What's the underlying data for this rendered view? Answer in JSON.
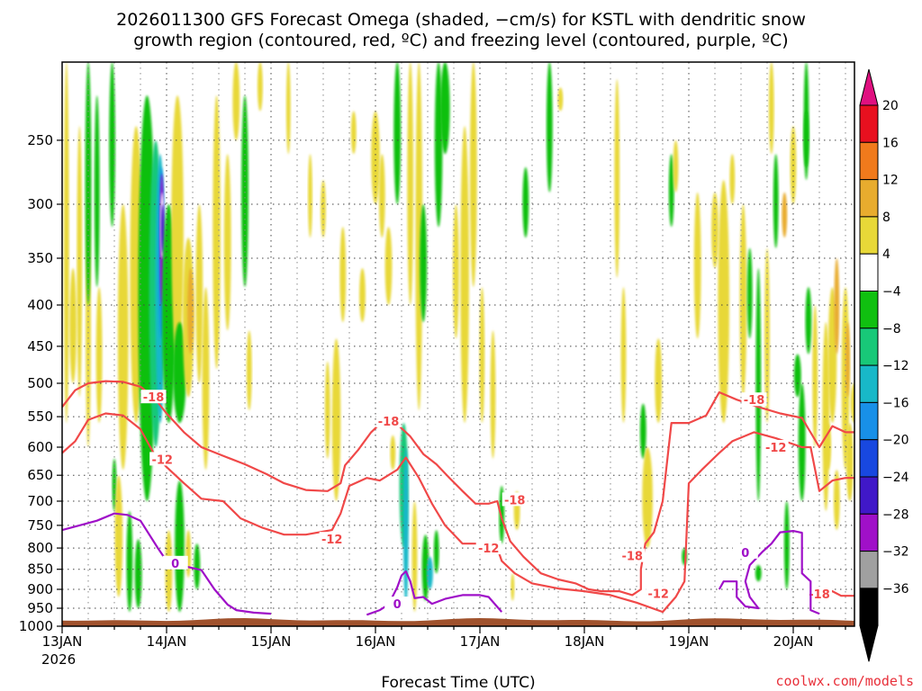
{
  "chart_data": {
    "type": "heatmap",
    "title_line1": "2026011300 GFS Forecast Omega (shaded, −cm/s) for KSTL with dendritic snow",
    "title_line2": "growth region (contoured, red, ºC) and freezing level (contoured, purple, ºC)",
    "xlabel": "Forecast Time (UTC)",
    "credit": "coolwx.com/models",
    "x_ticks": [
      {
        "t": 0,
        "label": "13JAN"
      },
      {
        "t": 24,
        "label": "14JAN"
      },
      {
        "t": 48,
        "label": "15JAN"
      },
      {
        "t": 72,
        "label": "16JAN"
      },
      {
        "t": 96,
        "label": "17JAN"
      },
      {
        "t": 120,
        "label": "18JAN"
      },
      {
        "t": 144,
        "label": "19JAN"
      },
      {
        "t": 168,
        "label": "20JAN"
      }
    ],
    "x_year_label": "2026",
    "xlim_hours": [
      0,
      183
    ],
    "y_ticks": [
      250,
      300,
      350,
      400,
      450,
      500,
      550,
      600,
      650,
      700,
      750,
      800,
      850,
      900,
      950,
      1000
    ],
    "ylim_hpa": [
      200,
      1000
    ],
    "y_scale": "log-pressure",
    "grid": true,
    "colorbar": {
      "levels": [
        "20",
        "16",
        "12",
        "8",
        "4",
        "−4",
        "−8",
        "−12",
        "−16",
        "−20",
        "−24",
        "−28",
        "−32",
        "−36"
      ],
      "colors": [
        "#e8101f",
        "#f07a1c",
        "#e8ac2e",
        "#e8d838",
        "#ffffff",
        "#10c010",
        "#18c878",
        "#18b8c8",
        "#1890e8",
        "#1848e0",
        "#4018c8",
        "#a010c8",
        "#a0a0a0",
        "#000000"
      ],
      "top_arrow_color": "#e01080",
      "bottom_arrow_color": "#000000"
    },
    "terrain_color": "#a0522d",
    "contours": [
      {
        "label": "-18",
        "color": "#f04848",
        "points": [
          [
            0,
            535
          ],
          [
            3,
            510
          ],
          [
            6,
            500
          ],
          [
            10,
            497
          ],
          [
            14,
            498
          ],
          [
            18,
            505
          ],
          [
            21,
            520
          ],
          [
            24,
            545
          ],
          [
            28,
            575
          ],
          [
            32,
            600
          ],
          [
            37,
            615
          ],
          [
            42,
            630
          ],
          [
            47,
            648
          ],
          [
            51,
            665
          ],
          [
            56,
            678
          ],
          [
            61,
            680
          ],
          [
            64,
            665
          ],
          [
            65,
            632
          ],
          [
            68,
            605
          ],
          [
            71,
            575
          ],
          [
            74,
            555
          ],
          [
            77,
            562
          ],
          [
            80,
            582
          ],
          [
            83,
            612
          ],
          [
            86,
            630
          ],
          [
            89,
            655
          ],
          [
            92,
            680
          ],
          [
            95,
            705
          ],
          [
            98,
            705
          ],
          [
            100,
            700
          ],
          [
            101,
            735
          ],
          [
            103,
            785
          ],
          [
            106,
            820
          ],
          [
            110,
            860
          ],
          [
            114,
            875
          ],
          [
            118,
            885
          ],
          [
            121,
            900
          ],
          [
            124,
            905
          ],
          [
            128,
            905
          ],
          [
            131,
            915
          ],
          [
            133,
            900
          ],
          [
            133,
            850
          ],
          [
            134,
            790
          ],
          [
            136,
            765
          ],
          [
            138,
            700
          ],
          [
            140,
            560
          ],
          [
            144,
            560
          ],
          [
            148,
            548
          ],
          [
            151,
            513
          ],
          [
            155,
            524
          ],
          [
            160,
            535
          ],
          [
            165,
            545
          ],
          [
            170,
            552
          ],
          [
            174,
            600
          ],
          [
            177,
            565
          ],
          [
            180,
            575
          ],
          [
            183,
            575
          ]
        ],
        "labels": [
          {
            "t": 21,
            "p": 520
          },
          {
            "t": 75,
            "p": 557
          },
          {
            "t": 104,
            "p": 697
          },
          {
            "t": 131,
            "p": 818
          },
          {
            "t": 159,
            "p": 524
          }
        ]
      },
      {
        "label": "-12",
        "color": "#f04848",
        "points": [
          [
            0,
            610
          ],
          [
            3,
            590
          ],
          [
            6,
            555
          ],
          [
            10,
            545
          ],
          [
            14,
            548
          ],
          [
            18,
            570
          ],
          [
            21,
            610
          ],
          [
            24,
            635
          ],
          [
            28,
            665
          ],
          [
            32,
            695
          ],
          [
            37,
            700
          ],
          [
            41,
            735
          ],
          [
            46,
            755
          ],
          [
            51,
            770
          ],
          [
            56,
            770
          ],
          [
            62,
            760
          ],
          [
            64,
            725
          ],
          [
            66,
            670
          ],
          [
            70,
            655
          ],
          [
            73,
            660
          ],
          [
            77,
            640
          ],
          [
            79,
            618
          ],
          [
            82,
            655
          ],
          [
            85,
            705
          ],
          [
            88,
            750
          ],
          [
            92,
            790
          ],
          [
            96,
            790
          ],
          [
            100,
            800
          ],
          [
            101,
            830
          ],
          [
            104,
            860
          ],
          [
            108,
            885
          ],
          [
            114,
            898
          ],
          [
            120,
            905
          ],
          [
            126,
            915
          ],
          [
            132,
            935
          ],
          [
            138,
            960
          ],
          [
            141,
            920
          ],
          [
            143,
            880
          ],
          [
            144,
            665
          ],
          [
            147,
            640
          ],
          [
            151,
            610
          ],
          [
            154,
            590
          ],
          [
            159,
            575
          ],
          [
            164,
            585
          ],
          [
            170,
            600
          ],
          [
            172,
            600
          ],
          [
            174,
            680
          ],
          [
            177,
            660
          ],
          [
            180,
            655
          ],
          [
            183,
            655
          ]
        ],
        "labels": [
          {
            "t": 23,
            "p": 621
          },
          {
            "t": 62,
            "p": 780
          },
          {
            "t": 98,
            "p": 800
          },
          {
            "t": 137,
            "p": 910
          },
          {
            "t": 164,
            "p": 600
          }
        ]
      },
      {
        "label": "-18",
        "color": "#f04848",
        "points": [
          [
            175,
            912
          ],
          [
            177,
            905
          ],
          [
            179,
            917
          ],
          [
            183,
            917
          ]
        ],
        "labels": [
          {
            "t": 174,
            "p": 912
          }
        ]
      },
      {
        "label": "0",
        "color": "#9f10c8",
        "points": [
          [
            0,
            760
          ],
          [
            4,
            750
          ],
          [
            8,
            740
          ],
          [
            12,
            725
          ],
          [
            15,
            728
          ],
          [
            18,
            740
          ],
          [
            22,
            800
          ],
          [
            24,
            830
          ],
          [
            27,
            840
          ],
          [
            32,
            852
          ],
          [
            35,
            900
          ],
          [
            38,
            940
          ],
          [
            40,
            955
          ],
          [
            44,
            962
          ],
          [
            48,
            965
          ]
        ],
        "labels": [
          {
            "t": 26,
            "p": 835
          }
        ]
      },
      {
        "label": "0",
        "color": "#9f10c8",
        "points": [
          [
            70,
            968
          ],
          [
            73,
            955
          ],
          [
            75,
            940
          ],
          [
            77,
            895
          ],
          [
            78,
            865
          ],
          [
            79,
            855
          ],
          [
            80,
            880
          ],
          [
            81,
            923
          ],
          [
            83,
            920
          ],
          [
            85,
            938
          ],
          [
            88,
            925
          ],
          [
            92,
            915
          ],
          [
            96,
            915
          ],
          [
            98,
            920
          ],
          [
            101,
            960
          ]
        ],
        "labels": [
          {
            "t": 77,
            "p": 938
          }
        ]
      },
      {
        "label": "0",
        "color": "#9f10c8",
        "points": [
          [
            151,
            900
          ],
          [
            152,
            880
          ],
          [
            155,
            880
          ],
          [
            155,
            920
          ],
          [
            157,
            945
          ],
          [
            160,
            950
          ],
          [
            158,
            920
          ],
          [
            157,
            880
          ],
          [
            158,
            840
          ],
          [
            161,
            808
          ],
          [
            163,
            790
          ],
          [
            165,
            765
          ],
          [
            168,
            762
          ],
          [
            170,
            766
          ],
          [
            170,
            860
          ],
          [
            172,
            880
          ],
          [
            172,
            955
          ],
          [
            174,
            965
          ]
        ],
        "labels": [
          {
            "t": 157,
            "p": 810
          }
        ]
      }
    ]
  }
}
